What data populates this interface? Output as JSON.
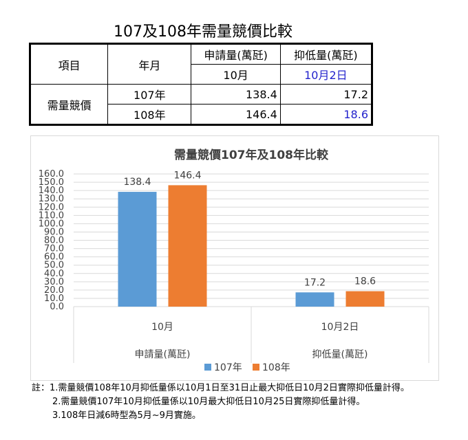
{
  "table": {
    "title": "107及108年需量競價比較",
    "header_item": "項目",
    "header_month": "年月",
    "col1_title": "申請量(萬瓩)",
    "col2_title": "抑低量(萬瓩)",
    "col1_sub": "10月",
    "col2_sub": "10月2日",
    "row_group": "需量競價",
    "rows": [
      {
        "year": "107年",
        "applied": "138.4",
        "reduced": "17.2"
      },
      {
        "year": "108年",
        "applied": "146.4",
        "reduced": "18.6"
      }
    ]
  },
  "chart_data": {
    "type": "bar",
    "title": "需量競價107年及108年比較",
    "categories": [
      "10月",
      "10月2日"
    ],
    "category_groups": [
      "申請量(萬瓩)",
      "抑低量(萬瓩)"
    ],
    "series": [
      {
        "name": "107年",
        "values": [
          138.4,
          17.2
        ],
        "color": "#5b9bd5"
      },
      {
        "name": "108年",
        "values": [
          146.4,
          18.6
        ],
        "color": "#ed7d31"
      }
    ],
    "ylim": [
      0,
      160
    ],
    "ytick_step": 10,
    "ytick_labels": [
      "0.0",
      "10.0",
      "20.0",
      "30.0",
      "40.0",
      "50.0",
      "60.0",
      "70.0",
      "80.0",
      "90.0",
      "100.0",
      "110.0",
      "120.0",
      "130.0",
      "140.0",
      "150.0",
      "160.0"
    ],
    "data_labels": [
      [
        "138.4",
        "17.2"
      ],
      [
        "146.4",
        "18.6"
      ]
    ],
    "grid": true,
    "legend_position": "bottom"
  },
  "notes": [
    "註：1.需量競價108年10月抑低量係以10月1日至31日止最大抑低日10月2日實際抑低量計得。",
    "2.需量競價107年10月抑低量係以10月最大抑低日10月25日實際抑低量計得。",
    "3.108年日減6時型為5月~9月實施。"
  ]
}
